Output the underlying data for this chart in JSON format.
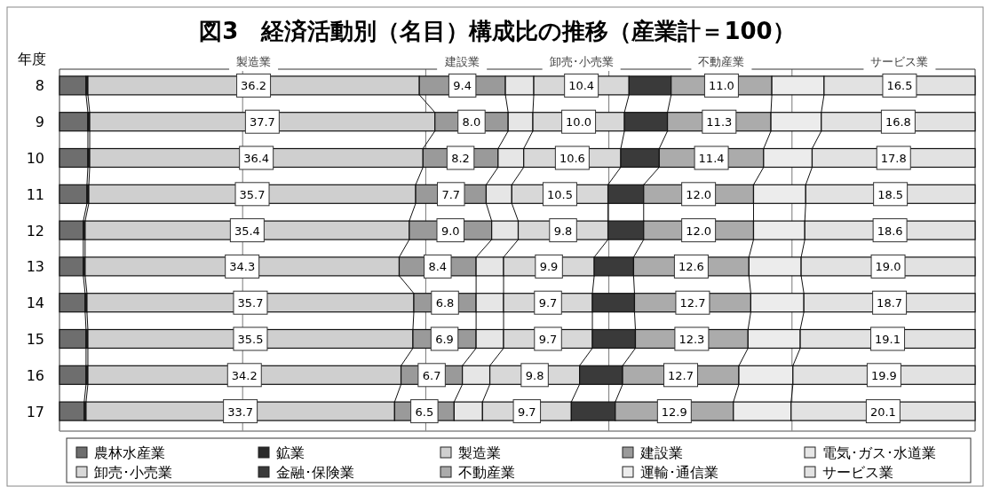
{
  "chart_data": {
    "type": "bar",
    "orientation": "horizontal",
    "stacked": true,
    "title": "図3　経済活動別（名目）構成比の推移（産業計＝100）",
    "ylabel": "年度",
    "categories": [
      "8",
      "9",
      "10",
      "11",
      "12",
      "13",
      "14",
      "15",
      "16",
      "17"
    ],
    "xlim": [
      0,
      100
    ],
    "xticks": [
      {
        "value": 20,
        "label": null
      },
      {
        "value": 40,
        "label": null
      },
      {
        "value": 60,
        "label": null
      },
      {
        "value": 80,
        "label": null
      }
    ],
    "tick_labels": "y",
    "grid": "x",
    "legend": "bottom",
    "annotations": [
      "製造業",
      "建設業",
      "卸売･小売業",
      "不動産業",
      "サービス業"
    ],
    "series": [
      {
        "name": "農林水産業",
        "color": "#6e6e6e",
        "values": [
          2.9,
          3.1,
          3.1,
          3.0,
          2.6,
          2.6,
          2.8,
          2.9,
          2.9,
          2.7
        ]
      },
      {
        "name": "鉱業",
        "color": "#2a2a2a",
        "values": [
          0.2,
          0.2,
          0.2,
          0.2,
          0.2,
          0.2,
          0.2,
          0.2,
          0.2,
          0.2
        ]
      },
      {
        "name": "製造業",
        "color": "#cfcfcf",
        "values": [
          36.2,
          37.7,
          36.4,
          35.7,
          35.4,
          34.3,
          35.7,
          35.5,
          34.2,
          33.7
        ],
        "value_labels": [
          "36.2",
          "37.7",
          "36.4",
          "35.7",
          "35.4",
          "34.3",
          "35.7",
          "35.5",
          "34.2",
          "33.7"
        ]
      },
      {
        "name": "建設業",
        "color": "#9a9a9a",
        "values": [
          9.4,
          8.0,
          8.2,
          7.7,
          9.0,
          8.4,
          6.8,
          6.9,
          6.7,
          6.5
        ],
        "value_labels": [
          "9.4",
          "8.0",
          "8.2",
          "7.7",
          "9.0",
          "8.4",
          "6.8",
          "6.9",
          "6.7",
          "6.5"
        ]
      },
      {
        "name": "電気･ガス･水道業",
        "color": "#e6e6e6",
        "values": [
          3.1,
          2.7,
          2.8,
          2.8,
          2.9,
          3.0,
          3.0,
          3.0,
          3.0,
          3.1
        ]
      },
      {
        "name": "卸売･小売業",
        "color": "#d8d8d8",
        "values": [
          10.4,
          10.0,
          10.6,
          10.5,
          9.8,
          9.9,
          9.7,
          9.7,
          9.8,
          9.7
        ],
        "value_labels": [
          "10.4",
          "10.0",
          "10.6",
          "10.5",
          "9.8",
          "9.9",
          "9.7",
          "9.7",
          "9.8",
          "9.7"
        ]
      },
      {
        "name": "金融･保険業",
        "color": "#3a3a3a",
        "values": [
          4.6,
          4.7,
          4.2,
          3.9,
          3.9,
          4.3,
          4.6,
          4.7,
          4.7,
          4.8
        ]
      },
      {
        "name": "不動産業",
        "color": "#ababab",
        "values": [
          11.0,
          11.3,
          11.4,
          12.0,
          12.0,
          12.6,
          12.7,
          12.3,
          12.7,
          12.9
        ],
        "value_labels": [
          "11.0",
          "11.3",
          "11.4",
          "12.0",
          "12.0",
          "12.6",
          "12.7",
          "12.3",
          "12.7",
          "12.9"
        ]
      },
      {
        "name": "運輸･通信業",
        "color": "#ececec",
        "values": [
          5.7,
          5.5,
          5.3,
          5.7,
          5.6,
          5.7,
          5.8,
          5.7,
          5.9,
          6.3
        ]
      },
      {
        "name": "サービス業",
        "color": "#e2e2e2",
        "values": [
          16.5,
          16.8,
          17.8,
          18.5,
          18.6,
          19.0,
          18.7,
          19.1,
          19.9,
          20.1
        ],
        "value_labels": [
          "16.5",
          "16.8",
          "17.8",
          "18.5",
          "18.6",
          "19.0",
          "18.7",
          "19.1",
          "19.9",
          "20.1"
        ]
      }
    ]
  }
}
